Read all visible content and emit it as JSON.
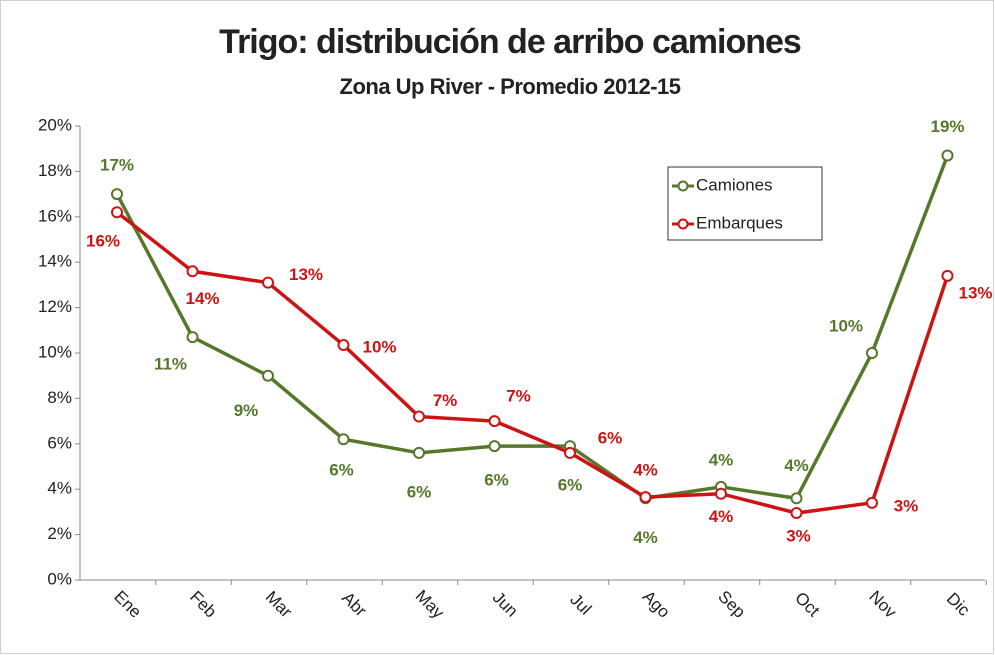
{
  "chart_data": {
    "type": "line",
    "title": "Trigo: distribución de arribo camiones",
    "subtitle": "Zona Up River - Promedio 2012-15",
    "categories": [
      "Ene",
      "Feb",
      "Mar",
      "Abr",
      "May",
      "Jun",
      "Jul",
      "Ago",
      "Sep",
      "Oct",
      "Nov",
      "Dic"
    ],
    "series": [
      {
        "name": "Camiones",
        "color": "#55782b",
        "values": [
          17.0,
          10.7,
          9.0,
          6.2,
          5.6,
          5.9,
          5.9,
          3.6,
          4.1,
          3.6,
          10.0,
          18.7
        ],
        "value_labels": [
          "17%",
          "11%",
          "9%",
          "6%",
          "6%",
          "6%",
          "6%",
          "4%",
          "4%",
          "4%",
          "10%",
          "19%"
        ]
      },
      {
        "name": "Embarques",
        "color": "#cc1414",
        "values": [
          16.2,
          13.6,
          13.1,
          10.35,
          7.2,
          7.0,
          5.6,
          3.65,
          3.8,
          2.95,
          3.4,
          13.4
        ],
        "value_labels": [
          "16%",
          "14%",
          "13%",
          "10%",
          "7%",
          "7%",
          "6%",
          "4%",
          "4%",
          "3%",
          "3%",
          "13%"
        ]
      }
    ],
    "ylim": [
      0,
      20
    ],
    "yticks": [
      {
        "value": 0,
        "label": "0%"
      },
      {
        "value": 2,
        "label": "2%"
      },
      {
        "value": 4,
        "label": "4%"
      },
      {
        "value": 6,
        "label": "6%"
      },
      {
        "value": 8,
        "label": "8%"
      },
      {
        "value": 10,
        "label": "10%"
      },
      {
        "value": 12,
        "label": "12%"
      },
      {
        "value": 14,
        "label": "14%"
      },
      {
        "value": 16,
        "label": "16%"
      },
      {
        "value": 18,
        "label": "18%"
      },
      {
        "value": 20,
        "label": "20%"
      }
    ],
    "legend": "upper-right",
    "grid": false
  }
}
